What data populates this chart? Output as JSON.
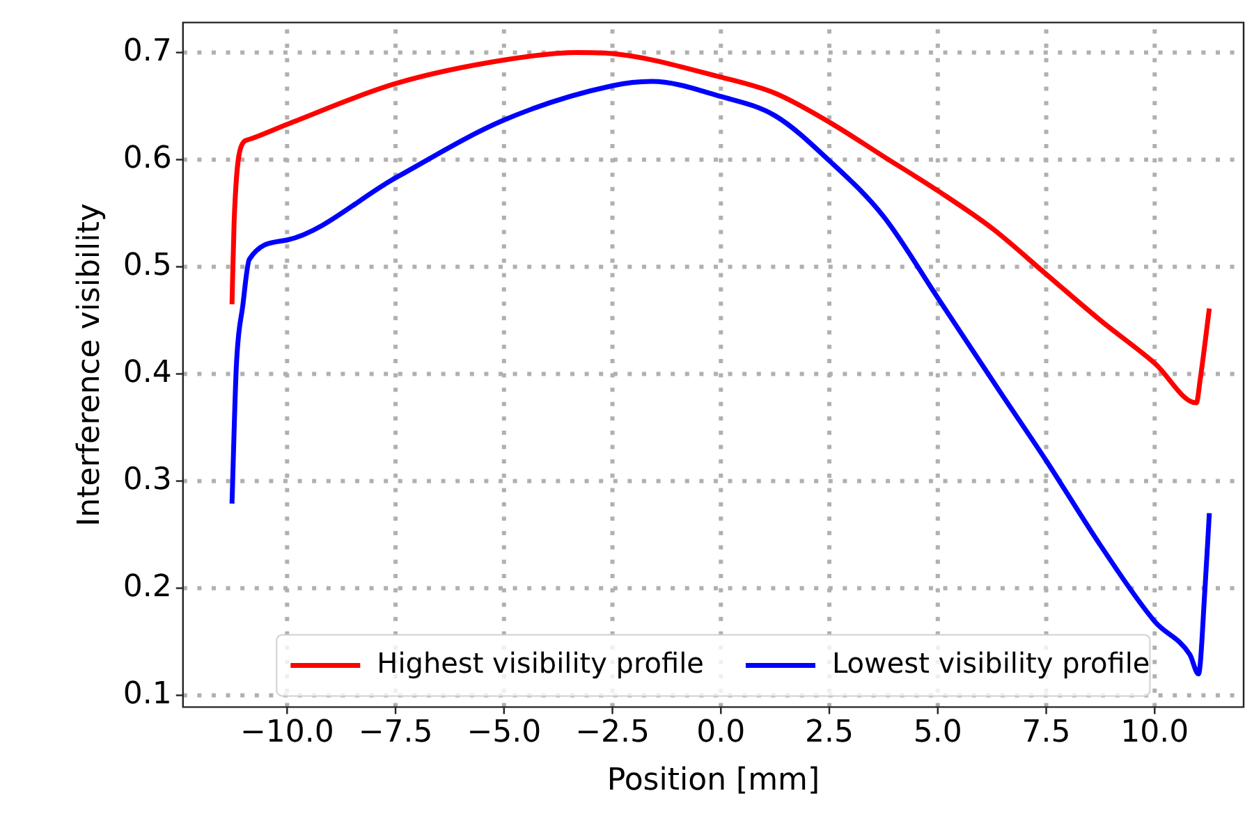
{
  "chart_data": {
    "type": "line",
    "xlabel": "Position [mm]",
    "ylabel": "Interference visibility",
    "xlim": [
      -12.4,
      12.05
    ],
    "xticks": [
      {
        "value": -10,
        "label": "−10.0"
      },
      {
        "value": -7.5,
        "label": "−7.5"
      },
      {
        "value": -5,
        "label": "−5.0"
      },
      {
        "value": -2.5,
        "label": "−2.5"
      },
      {
        "value": 0,
        "label": "0.0"
      },
      {
        "value": 2.5,
        "label": "2.5"
      },
      {
        "value": 5,
        "label": "5.0"
      },
      {
        "value": 7.5,
        "label": "7.5"
      },
      {
        "value": 10,
        "label": "10.0"
      }
    ],
    "ylim": [
      0.089,
      0.728
    ],
    "yticks": [
      0.1,
      0.2,
      0.3,
      0.4,
      0.5,
      0.6,
      0.7
    ],
    "grid": true,
    "line_style": "solid",
    "legend": "bottom",
    "marker": "none",
    "series": [
      {
        "name": "Highest visibility profile",
        "color": "#ff0000",
        "x": [
          -11.27,
          -11.22,
          -11.07,
          -10.87,
          -10,
          -7.5,
          -5,
          -3.3,
          -2.5,
          0,
          1.25,
          2.5,
          3.75,
          5,
          6.25,
          7.5,
          8.75,
          10,
          10.96,
          11.05,
          11.26
        ],
        "values": [
          0.465,
          0.543,
          0.611,
          0.619,
          0.633,
          0.671,
          0.693,
          0.7,
          0.699,
          0.677,
          0.662,
          0.635,
          0.603,
          0.571,
          0.536,
          0.493,
          0.45,
          0.41,
          0.373,
          0.395,
          0.461
        ]
      },
      {
        "name": "Lowest visibility profile",
        "color": "#0000ff",
        "x": [
          -11.27,
          -11.17,
          -11.02,
          -10.87,
          -10,
          -7.5,
          -5,
          -2.5,
          -1.6,
          0,
          1.25,
          2.5,
          3.75,
          5,
          6.44,
          7.5,
          8.75,
          10,
          10.81,
          11.01,
          11.16,
          11.26
        ],
        "values": [
          0.279,
          0.407,
          0.464,
          0.507,
          0.525,
          0.583,
          0.637,
          0.669,
          0.673,
          0.659,
          0.641,
          0.599,
          0.547,
          0.471,
          0.383,
          0.319,
          0.24,
          0.169,
          0.138,
          0.12,
          0.2,
          0.27
        ]
      }
    ]
  }
}
